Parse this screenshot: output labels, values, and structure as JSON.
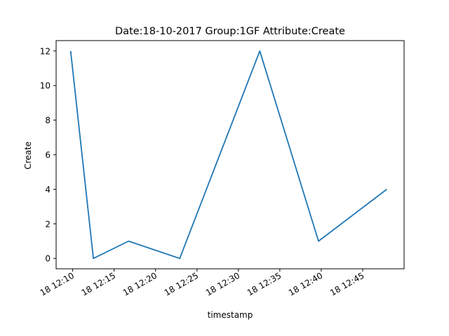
{
  "chart_data": {
    "type": "line",
    "title": "Date:18-10-2017  Group:1GF Attribute:Create",
    "xlabel": "timestamp",
    "ylabel": "Create",
    "x_ticks": [
      "18 12:10",
      "18 12:15",
      "18 12:20",
      "18 12:25",
      "18 12:30",
      "18 12:35",
      "18 12:40",
      "18 12:45"
    ],
    "y_ticks": [
      "0",
      "2",
      "4",
      "6",
      "8",
      "10",
      "12"
    ],
    "xlim": [
      "2017-10-18 12:08:00",
      "2017-10-18 12:50:00"
    ],
    "ylim": [
      -0.6,
      12.6
    ],
    "grid": false,
    "series": [
      {
        "color": "#1f77b4",
        "x": [
          "2017-10-18 12:09:45",
          "2017-10-18 12:12:30",
          "2017-10-18 12:16:45",
          "2017-10-18 12:22:55",
          "2017-10-18 12:32:35",
          "2017-10-18 12:39:40",
          "2017-10-18 12:47:55"
        ],
        "y": [
          12,
          0,
          1,
          0,
          12,
          1,
          4
        ]
      }
    ]
  }
}
